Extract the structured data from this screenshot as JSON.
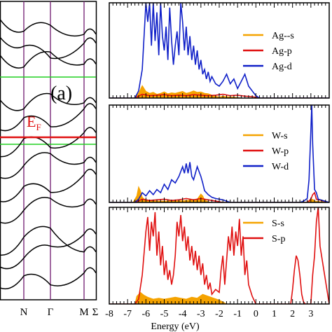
{
  "colors": {
    "orange": "#f5a300",
    "red": "#e01010",
    "blue": "#1020c8",
    "green": "#20d020",
    "purple": "#7a2a7a",
    "black": "#000000"
  },
  "band_panel": {
    "label": "(a)",
    "fermi_label": "E",
    "fermi_sub": "F",
    "kpoint_labels": [
      "N",
      "Γ",
      "M",
      "Σ"
    ],
    "bands": [
      [
        -5.6,
        -5.2,
        -5.5,
        -5.1
      ],
      [
        -4.9,
        -4.6,
        -4.2,
        -3.8
      ],
      [
        -4.5,
        -3.9,
        -3.6,
        -4.4
      ],
      [
        -3.4,
        -3.0,
        -2.6,
        -2.8
      ],
      [
        -2.7,
        -2.2,
        -2.4,
        -1.8
      ],
      [
        -1.9,
        -1.5,
        -1.1,
        -1.4
      ],
      [
        -1.2,
        -0.6,
        -0.9,
        -0.4
      ],
      [
        -0.3,
        0.1,
        -0.2,
        0.4
      ],
      [
        0.7,
        0.4,
        0.9,
        0.6
      ],
      [
        2.2,
        1.8,
        2.3,
        1.9
      ],
      [
        2.8,
        2.5,
        2.1,
        2.6
      ],
      [
        3.4,
        3.0,
        3.2,
        2.9
      ]
    ]
  },
  "chart_data": [
    {
      "type": "area",
      "xlabel": "",
      "xlim": [
        -8,
        4
      ],
      "legend": [
        "Ag--s",
        "Ag-p",
        "Ag-d"
      ],
      "legend_position": "right",
      "series": [
        {
          "name": "Ag--s",
          "color": "orange",
          "fill": true,
          "x": [
            -8,
            -6.6,
            -6.4,
            -6.2,
            -6.0,
            -5.8,
            -5.6,
            -5.4,
            -5.2,
            -5.0,
            -4.8,
            -4.6,
            -4.4,
            -4.2,
            -4.0,
            -3.8,
            -3.6,
            -3.4,
            -3.2,
            -3.0,
            -2.8,
            -2.6,
            -2.4,
            -2.2,
            -2.0,
            -1.8,
            -1.6,
            -1.4,
            -1.2,
            -1.0,
            -0.8,
            4
          ],
          "y": [
            0,
            0,
            0.1,
            0.26,
            0.14,
            0.1,
            0.12,
            0.08,
            0.1,
            0.13,
            0.09,
            0.11,
            0.1,
            0.12,
            0.14,
            0.1,
            0.12,
            0.15,
            0.12,
            0.13,
            0.1,
            0.09,
            0.06,
            0.04,
            0.02,
            0.04,
            0.03,
            0.02,
            0.02,
            0.01,
            0,
            0
          ]
        },
        {
          "name": "Ag-p",
          "color": "red",
          "x": [
            -8,
            -6.6,
            -6.2,
            -5.8,
            -5.4,
            -5.0,
            -4.6,
            -4.2,
            -3.8,
            -3.4,
            -3.0,
            -2.6,
            -2.2,
            -1.8,
            -1.4,
            -1.0,
            -0.6,
            -0.2,
            0.2,
            4
          ],
          "y": [
            0,
            0,
            0.08,
            0.05,
            0.06,
            0.07,
            0.05,
            0.06,
            0.05,
            0.07,
            0.06,
            0.05,
            0.06,
            0.08,
            0.05,
            0.06,
            0.04,
            0.03,
            0,
            0
          ]
        },
        {
          "name": "Ag-d",
          "color": "blue",
          "x": [
            -8,
            -6.6,
            -6.4,
            -6.2,
            -6.1,
            -6.0,
            -5.9,
            -5.8,
            -5.7,
            -5.6,
            -5.5,
            -5.4,
            -5.3,
            -5.2,
            -5.1,
            -5.0,
            -4.9,
            -4.8,
            -4.7,
            -4.6,
            -4.5,
            -4.4,
            -4.3,
            -4.2,
            -4.1,
            -4.0,
            -3.9,
            -3.8,
            -3.7,
            -3.6,
            -3.5,
            -3.4,
            -3.3,
            -3.2,
            -3.1,
            -3.0,
            -2.9,
            -2.8,
            -2.7,
            -2.6,
            -2.5,
            -2.4,
            -2.2,
            -2.0,
            -1.8,
            -1.6,
            -1.4,
            -1.2,
            -1.0,
            -0.8,
            -0.6,
            -0.4,
            -0.2,
            0.0,
            0.2,
            4
          ],
          "y": [
            0,
            0,
            0.15,
            0.6,
            1.3,
            2.0,
            1.6,
            2.0,
            1.1,
            2.0,
            1.2,
            1.8,
            0.9,
            2.0,
            1.3,
            1.0,
            1.5,
            0.8,
            1.9,
            1.2,
            0.7,
            1.1,
            1.4,
            0.9,
            2.0,
            1.6,
            1.0,
            1.5,
            0.9,
            1.3,
            0.8,
            1.1,
            0.7,
            1.0,
            0.6,
            0.8,
            0.5,
            0.6,
            0.4,
            0.55,
            0.35,
            0.45,
            0.3,
            0.25,
            0.35,
            0.5,
            0.3,
            0.4,
            0.2,
            0.35,
            0.5,
            0.25,
            0.15,
            0.05,
            0,
            0
          ]
        }
      ]
    },
    {
      "type": "area",
      "xlabel": "",
      "xlim": [
        -8,
        4
      ],
      "legend": [
        "W-s",
        "W-p",
        "W-d"
      ],
      "legend_position": "right",
      "series": [
        {
          "name": "W-s",
          "color": "orange",
          "fill": true,
          "x": [
            -8,
            -6.7,
            -6.5,
            -6.4,
            -6.3,
            -6.2,
            -6.0,
            -5.6,
            -5.0,
            -4.4,
            -3.8,
            -3.2,
            -3.0,
            -2.9,
            -2.8,
            -2.6,
            -2.4,
            2.8,
            3.0,
            3.1,
            3.2,
            4
          ],
          "y": [
            0,
            0,
            0.1,
            0.24,
            0.18,
            0.08,
            0.03,
            0.02,
            0.02,
            0.02,
            0.03,
            0.05,
            0.13,
            0.1,
            0.04,
            0.01,
            0,
            0,
            0.04,
            0.05,
            0.02,
            0
          ]
        },
        {
          "name": "W-p",
          "color": "red",
          "x": [
            -8,
            -6.6,
            -6.2,
            -5.8,
            -5.4,
            -5.0,
            -4.6,
            -4.2,
            -3.8,
            -3.4,
            -3.0,
            -2.6,
            -2.2,
            -1.8,
            2.8,
            3.0,
            3.1,
            3.2,
            3.3,
            4
          ],
          "y": [
            0,
            0,
            0.05,
            0.03,
            0.04,
            0.05,
            0.03,
            0.04,
            0.06,
            0.04,
            0.06,
            0.04,
            0.02,
            0,
            0,
            0.05,
            0.12,
            0.15,
            0.05,
            0
          ]
        },
        {
          "name": "W-d",
          "color": "blue",
          "x": [
            -8,
            -6.6,
            -6.4,
            -6.2,
            -6.0,
            -5.8,
            -5.6,
            -5.4,
            -5.2,
            -5.0,
            -4.8,
            -4.6,
            -4.4,
            -4.2,
            -4.0,
            -3.9,
            -3.8,
            -3.7,
            -3.6,
            -3.5,
            -3.4,
            -3.2,
            -3.0,
            -2.9,
            -2.8,
            -2.6,
            -2.4,
            -2.2,
            -2.0,
            -1.8,
            -1.6,
            -1.4,
            2.4,
            2.6,
            2.8,
            2.9,
            3.0,
            3.05,
            3.1,
            3.2,
            3.3,
            3.4,
            4
          ],
          "y": [
            0,
            0,
            0.05,
            0.15,
            0.1,
            0.18,
            0.12,
            0.2,
            0.15,
            0.28,
            0.2,
            0.35,
            0.3,
            0.4,
            0.55,
            0.45,
            0.6,
            0.45,
            0.62,
            0.4,
            0.35,
            0.55,
            0.4,
            0.3,
            0.18,
            0.12,
            0.08,
            0.06,
            0.05,
            0.04,
            0.02,
            0,
            0,
            0.02,
            0.06,
            0.35,
            1.1,
            1.5,
            0.9,
            0.2,
            0.15,
            0.05,
            0
          ]
        }
      ]
    },
    {
      "type": "area",
      "xlabel": "Energy (eV)",
      "xlim": [
        -8,
        4
      ],
      "xticks": [
        -8,
        -7,
        -6,
        -5,
        -4,
        -3,
        -2,
        -1,
        0,
        1,
        2,
        3
      ],
      "legend": [
        "S-s",
        "S-p"
      ],
      "legend_position": "right",
      "series": [
        {
          "name": "S-s",
          "color": "orange",
          "fill": true,
          "x": [
            -8,
            -6.6,
            -6.5,
            -6.3,
            -6.1,
            -5.9,
            -5.6,
            -5.3,
            -5.0,
            -4.7,
            -4.4,
            -4.1,
            -3.8,
            -3.5,
            -3.2,
            -2.9,
            -2.6,
            -2.3,
            -2.0,
            -1.8,
            -1.6,
            4
          ],
          "y": [
            0,
            0,
            0.08,
            0.12,
            0.09,
            0.07,
            0.05,
            0.06,
            0.05,
            0.06,
            0.07,
            0.06,
            0.05,
            0.07,
            0.06,
            0.1,
            0.08,
            0.06,
            0.04,
            0.02,
            0,
            0
          ]
        },
        {
          "name": "S-p",
          "color": "red",
          "x": [
            -8,
            -6.6,
            -6.4,
            -6.2,
            -6.0,
            -5.9,
            -5.8,
            -5.7,
            -5.6,
            -5.5,
            -5.4,
            -5.3,
            -5.2,
            -5.1,
            -5.0,
            -4.9,
            -4.8,
            -4.7,
            -4.6,
            -4.5,
            -4.4,
            -4.3,
            -4.2,
            -4.1,
            -4.0,
            -3.9,
            -3.8,
            -3.7,
            -3.6,
            -3.5,
            -3.4,
            -3.3,
            -3.2,
            -3.1,
            -3.0,
            -2.9,
            -2.8,
            -2.7,
            -2.6,
            -2.5,
            -2.4,
            -2.2,
            -2.0,
            -1.9,
            -1.8,
            -1.7,
            -1.6,
            -1.5,
            -1.4,
            -1.3,
            -1.2,
            -1.1,
            -1.0,
            -0.9,
            -0.8,
            -0.7,
            -0.6,
            -0.5,
            -0.4,
            -0.2,
            0.0,
            1.9,
            2.0,
            2.1,
            2.2,
            2.3,
            2.4,
            2.5,
            2.6,
            2.7,
            2.8,
            3.0,
            3.1,
            3.2,
            3.3,
            3.4,
            3.5,
            4
          ],
          "y": [
            0,
            0,
            0.05,
            0.3,
            0.75,
            0.9,
            0.55,
            0.85,
            0.7,
            0.95,
            0.5,
            0.75,
            0.4,
            0.6,
            0.3,
            0.45,
            0.25,
            0.35,
            0.2,
            0.3,
            0.5,
            0.85,
            0.7,
            0.92,
            0.65,
            0.8,
            0.55,
            0.7,
            0.45,
            0.6,
            0.4,
            0.55,
            0.35,
            0.5,
            0.3,
            0.42,
            0.2,
            0.3,
            0.15,
            0.22,
            0.1,
            0.15,
            0.12,
            0.35,
            0.5,
            0.2,
            0.45,
            0.7,
            0.55,
            0.8,
            0.5,
            0.75,
            0.6,
            0.88,
            0.5,
            0.7,
            0.3,
            0.45,
            0.2,
            0.08,
            0,
            0,
            0.15,
            0.35,
            0.5,
            0.45,
            0.3,
            0.1,
            0.02,
            0,
            0,
            0,
            0.3,
            0.5,
            0.85,
            1.0,
            0.6,
            0
          ]
        }
      ]
    }
  ]
}
